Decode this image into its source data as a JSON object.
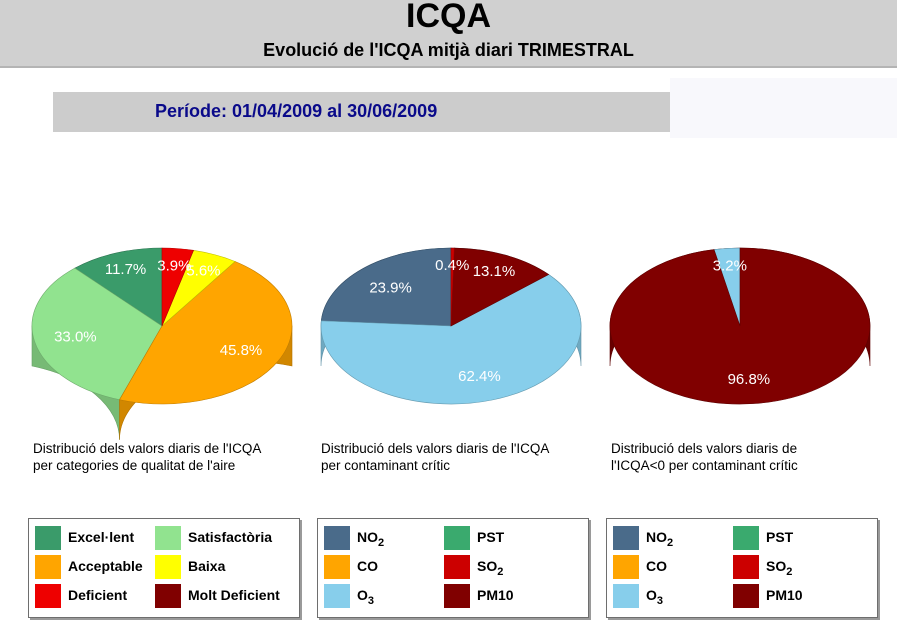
{
  "header": {
    "title": "ICQA",
    "subtitle": "Evolució de l'ICQA mitjà diari TRIMESTRAL"
  },
  "period": "Període: 01/04/2009 al 30/06/2009",
  "colors": {
    "Excel·lent": "#3a9b6a",
    "Satisfactòria": "#91e38f",
    "Acceptable": "#ffa500",
    "Baixa": "#ffff00",
    "Deficient": "#ee0000",
    "Molt Deficient": "#800000",
    "NO2": "#4a6b8a",
    "PST": "#3aaa6e",
    "CO": "#ffa500",
    "SO2": "#cc0000",
    "O3": "#87ceeb",
    "PM10": "#800000"
  },
  "chart_data": [
    {
      "type": "pie",
      "caption_lines": [
        "Distribució dels valors diaris de l'ICQA",
        "per categories de qualitat de l'aire"
      ],
      "slices": [
        {
          "key": "Excel·lent",
          "value": 11.7,
          "label": "11.7%"
        },
        {
          "key": "Satisfactòria",
          "value": 33.0,
          "label": "33.0%"
        },
        {
          "key": "Acceptable",
          "value": 45.8,
          "label": "45.8%"
        },
        {
          "key": "Baixa",
          "value": 5.6,
          "label": "5.6%"
        },
        {
          "key": "Deficient",
          "value": 3.9,
          "label": "3.9%"
        }
      ],
      "legend": [
        {
          "key": "Excel·lent",
          "label": "Excel·lent"
        },
        {
          "key": "Satisfactòria",
          "label": "Satisfactòria"
        },
        {
          "key": "Acceptable",
          "label": "Acceptable"
        },
        {
          "key": "Baixa",
          "label": "Baixa"
        },
        {
          "key": "Deficient",
          "label": "Deficient"
        },
        {
          "key": "Molt Deficient",
          "label": "Molt Deficient"
        }
      ]
    },
    {
      "type": "pie",
      "caption_lines": [
        "Distribució dels valors diaris de l'ICQA",
        "per contaminant crític"
      ],
      "slices": [
        {
          "key": "NO2",
          "value": 23.9,
          "label": "23.9%"
        },
        {
          "key": "O3",
          "value": 62.4,
          "label": "62.4%"
        },
        {
          "key": "PM10",
          "value": 13.1,
          "label": "13.1%"
        },
        {
          "key": "SO2",
          "value": 0.4,
          "label": "0.4%"
        }
      ],
      "legend": [
        {
          "key": "NO2",
          "label": "NO",
          "sub": "2"
        },
        {
          "key": "PST",
          "label": "PST"
        },
        {
          "key": "CO",
          "label": "CO"
        },
        {
          "key": "SO2",
          "label": "SO",
          "sub": "2"
        },
        {
          "key": "O3",
          "label": "O",
          "sub": "3"
        },
        {
          "key": "PM10",
          "label": "PM10"
        }
      ]
    },
    {
      "type": "pie",
      "caption_lines": [
        "Distribució dels valors diaris de",
        "l'ICQA<0 per contaminant crític"
      ],
      "slices": [
        {
          "key": "O3",
          "value": 3.2,
          "label": "3.2%"
        },
        {
          "key": "PM10",
          "value": 96.8,
          "label": "96.8%"
        }
      ],
      "legend": [
        {
          "key": "NO2",
          "label": "NO",
          "sub": "2"
        },
        {
          "key": "PST",
          "label": "PST"
        },
        {
          "key": "CO",
          "label": "CO"
        },
        {
          "key": "SO2",
          "label": "SO",
          "sub": "2"
        },
        {
          "key": "O3",
          "label": "O",
          "sub": "3"
        },
        {
          "key": "PM10",
          "label": "PM10"
        }
      ]
    }
  ]
}
